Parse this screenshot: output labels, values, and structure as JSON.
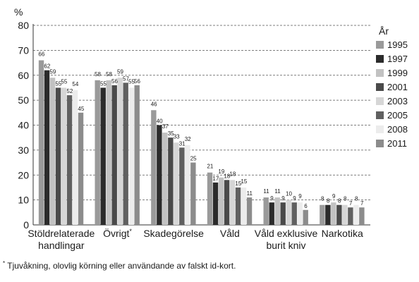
{
  "chart_data": {
    "type": "bar",
    "ylabel": "%",
    "ylim": [
      0,
      80
    ],
    "yticks": [
      0,
      10,
      20,
      30,
      40,
      50,
      60,
      70,
      80
    ],
    "grid": true,
    "legend_title": "År",
    "legend_position": "right",
    "categories": [
      {
        "lines": [
          "Stöldrelaterade",
          "handlingar"
        ],
        "marker": ""
      },
      {
        "lines": [
          "Övrigt"
        ],
        "marker": "*"
      },
      {
        "lines": [
          "Skadegörelse"
        ],
        "marker": ""
      },
      {
        "lines": [
          "Våld"
        ],
        "marker": ""
      },
      {
        "lines": [
          "Våld exklusive",
          "burit kniv"
        ],
        "marker": ""
      },
      {
        "lines": [
          "Narkotika"
        ],
        "marker": ""
      }
    ],
    "series": [
      {
        "name": "1995",
        "color": "#9a9a9a",
        "values": [
          66,
          58,
          46,
          21,
          11,
          8
        ]
      },
      {
        "name": "1997",
        "color": "#2b2b2b",
        "values": [
          62,
          55,
          40,
          17,
          9,
          8
        ]
      },
      {
        "name": "1999",
        "color": "#c2c2c2",
        "values": [
          59,
          58,
          37,
          19,
          11,
          9
        ]
      },
      {
        "name": "2001",
        "color": "#4a4a4a",
        "values": [
          55,
          56,
          35,
          18,
          9,
          8
        ]
      },
      {
        "name": "2003",
        "color": "#d6d6d6",
        "values": [
          55,
          59,
          33,
          18,
          10,
          8
        ]
      },
      {
        "name": "2005",
        "color": "#606060",
        "values": [
          52,
          57,
          31,
          15,
          9,
          7
        ]
      },
      {
        "name": "2008",
        "color": "#ececec",
        "values": [
          54,
          55,
          32,
          15,
          9,
          8
        ]
      },
      {
        "name": "2011",
        "color": "#8c8c8c",
        "values": [
          45,
          56,
          25,
          11,
          6,
          7
        ]
      }
    ]
  },
  "footnote": {
    "marker": "*",
    "text": " Tjuvåkning, olovlig körning eller användande av falskt id-kort."
  }
}
